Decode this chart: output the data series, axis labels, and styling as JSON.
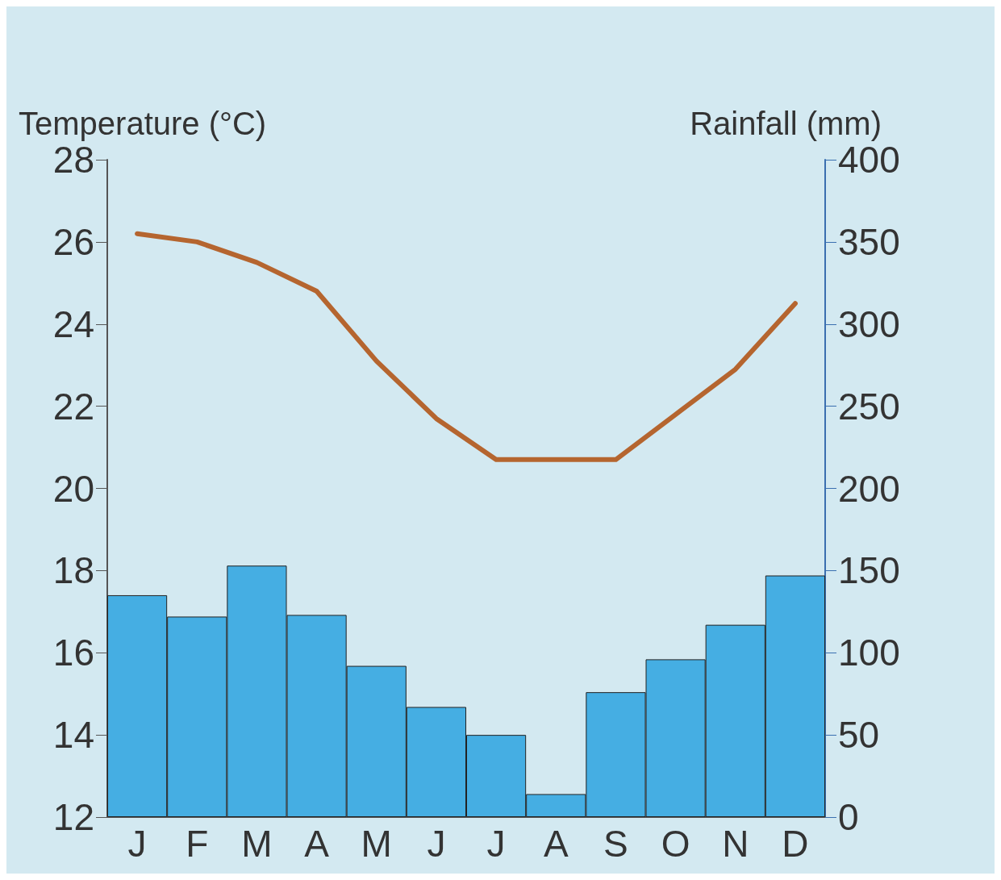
{
  "chart_data": {
    "type": "bar",
    "ylabel": "Temperature (°C)",
    "y2label": "Rainfall (mm)",
    "categories": [
      "J",
      "F",
      "M",
      "A",
      "M",
      "J",
      "J",
      "A",
      "S",
      "O",
      "N",
      "D"
    ],
    "series": [
      {
        "axis": "y2",
        "color": "#45aee3",
        "values": [
          135,
          122,
          153,
          123,
          92,
          67,
          50,
          14,
          76,
          96,
          117,
          147
        ]
      },
      {
        "type": "line",
        "axis": "y",
        "color": "#b5652f",
        "values": [
          26.2,
          26.0,
          25.5,
          24.8,
          23.1,
          21.7,
          20.7,
          20.7,
          20.7,
          21.8,
          22.9,
          24.5
        ]
      }
    ],
    "ylim": [
      12,
      28
    ],
    "yticks": [
      12,
      14,
      16,
      18,
      20,
      22,
      24,
      26,
      28
    ],
    "y2lim": [
      0,
      400
    ],
    "y2ticks": [
      0,
      50,
      100,
      150,
      200,
      250,
      300,
      350,
      400
    ],
    "grid": false,
    "marker": "none",
    "line_style": "solid"
  }
}
